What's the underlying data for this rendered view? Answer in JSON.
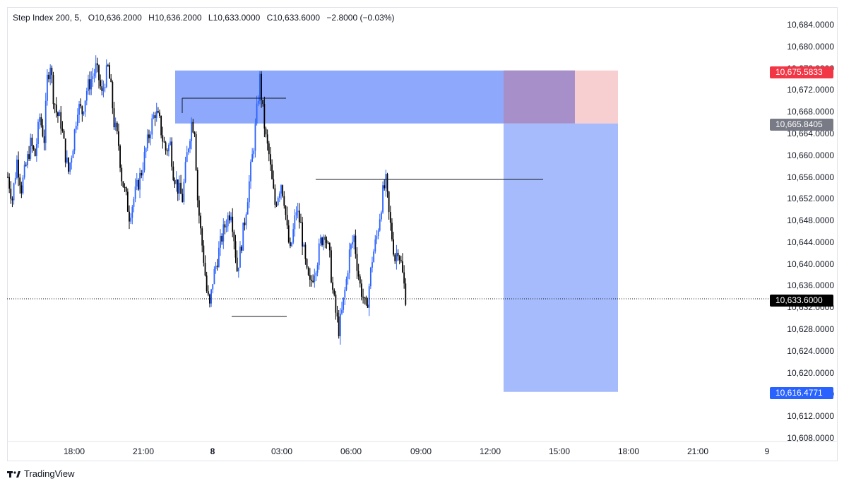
{
  "legend": {
    "symbol": "Step Index 200, 5,",
    "open": "O10,636.2000",
    "high": "H10,636.2000",
    "low": "L10,633.0000",
    "close": "C10,633.6000",
    "change": "−2.8000 (−0.03%)"
  },
  "price_axis": {
    "labels": [
      "10,684.0000",
      "10,680.0000",
      "10,676.0000",
      "10,672.0000",
      "10,668.0000",
      "10,664.0000",
      "10,660.0000",
      "10,656.0000",
      "10,652.0000",
      "10,648.0000",
      "10,644.0000",
      "10,640.0000",
      "10,636.0000",
      "10,632.0000",
      "10,628.0000",
      "10,624.0000",
      "10,620.0000",
      "10,616.0000",
      "10,612.0000",
      "10,608.0000"
    ]
  },
  "time_axis": {
    "labels": [
      "18:00",
      "21:00",
      "8",
      "03:00",
      "06:00",
      "09:00",
      "12:00",
      "15:00",
      "18:00",
      "21:00",
      "9"
    ]
  },
  "tags": {
    "stop_loss": "10,675.5833",
    "entry": "10,665.8405",
    "current": "10,633.6000",
    "take_profit": "10,616.4771"
  },
  "colors": {
    "bull": "#2962ff",
    "bear": "#000000",
    "zone_blue": "#8ea9fb",
    "stop_red": "#f7c7c8",
    "target_blue": "#a5bbfb",
    "tag_red": "#f23645",
    "tag_gray": "#787b86",
    "tag_black": "#000000",
    "tag_blue": "#2962ff"
  },
  "chart_data": {
    "type": "candlestick",
    "symbol": "Step Index 200",
    "timeframe": "5",
    "ylim": [
      10606,
      10688
    ],
    "last_price": 10633.6,
    "entry": 10665.8405,
    "stop": 10675.5833,
    "target": 10616.4771,
    "supply_zone": [
      10665.84,
      10675.58
    ],
    "path": [
      [
        0,
        10656
      ],
      [
        6,
        10652
      ],
      [
        12,
        10659
      ],
      [
        18,
        10654
      ],
      [
        24,
        10658
      ],
      [
        30,
        10662
      ],
      [
        36,
        10660
      ],
      [
        42,
        10667
      ],
      [
        48,
        10663
      ],
      [
        52,
        10674
      ],
      [
        56,
        10677
      ],
      [
        60,
        10671
      ],
      [
        64,
        10668
      ],
      [
        70,
        10666
      ],
      [
        76,
        10660
      ],
      [
        80,
        10657
      ],
      [
        86,
        10662
      ],
      [
        92,
        10669
      ],
      [
        98,
        10668
      ],
      [
        104,
        10672
      ],
      [
        110,
        10674
      ],
      [
        116,
        10676
      ],
      [
        120,
        10674
      ],
      [
        124,
        10671
      ],
      [
        128,
        10674
      ],
      [
        132,
        10676
      ],
      [
        136,
        10672
      ],
      [
        140,
        10666
      ],
      [
        146,
        10662
      ],
      [
        150,
        10656
      ],
      [
        156,
        10652
      ],
      [
        160,
        10649
      ],
      [
        164,
        10651
      ],
      [
        170,
        10654
      ],
      [
        176,
        10657
      ],
      [
        182,
        10661
      ],
      [
        188,
        10665
      ],
      [
        194,
        10668
      ],
      [
        200,
        10666
      ],
      [
        204,
        10663
      ],
      [
        208,
        10661
      ],
      [
        214,
        10662
      ],
      [
        218,
        10657
      ],
      [
        224,
        10654
      ],
      [
        230,
        10652
      ],
      [
        236,
        10660
      ],
      [
        242,
        10666
      ],
      [
        246,
        10665
      ],
      [
        250,
        10652
      ],
      [
        254,
        10646
      ],
      [
        258,
        10641
      ],
      [
        262,
        10635
      ],
      [
        266,
        10632
      ],
      [
        270,
        10637
      ],
      [
        276,
        10641
      ],
      [
        282,
        10645
      ],
      [
        288,
        10648
      ],
      [
        294,
        10650
      ],
      [
        298,
        10645
      ],
      [
        302,
        10639
      ],
      [
        306,
        10642
      ],
      [
        312,
        10648
      ],
      [
        318,
        10655
      ],
      [
        324,
        10662
      ],
      [
        328,
        10668
      ],
      [
        332,
        10674
      ],
      [
        336,
        10668
      ],
      [
        340,
        10663
      ],
      [
        344,
        10660
      ],
      [
        348,
        10655
      ],
      [
        352,
        10651
      ],
      [
        356,
        10653
      ],
      [
        360,
        10655
      ],
      [
        364,
        10652
      ],
      [
        368,
        10646
      ],
      [
        372,
        10642
      ],
      [
        376,
        10646
      ],
      [
        380,
        10650
      ],
      [
        386,
        10647
      ],
      [
        390,
        10642
      ],
      [
        394,
        10638
      ],
      [
        398,
        10636
      ],
      [
        402,
        10638
      ],
      [
        408,
        10641
      ],
      [
        412,
        10644
      ],
      [
        418,
        10646
      ],
      [
        424,
        10641
      ],
      [
        428,
        10635
      ],
      [
        432,
        10631
      ],
      [
        436,
        10628
      ],
      [
        440,
        10631
      ],
      [
        446,
        10637
      ],
      [
        450,
        10642
      ],
      [
        456,
        10645
      ],
      [
        460,
        10640
      ],
      [
        464,
        10636
      ],
      [
        468,
        10634
      ],
      [
        472,
        10631
      ],
      [
        476,
        10636
      ],
      [
        480,
        10641
      ],
      [
        486,
        10645
      ],
      [
        490,
        10649
      ],
      [
        494,
        10653
      ],
      [
        498,
        10655
      ],
      [
        502,
        10649
      ],
      [
        506,
        10645
      ],
      [
        510,
        10641
      ],
      [
        514,
        10643
      ],
      [
        518,
        10640
      ],
      [
        522,
        10636
      ],
      [
        524,
        10634
      ]
    ]
  }
}
